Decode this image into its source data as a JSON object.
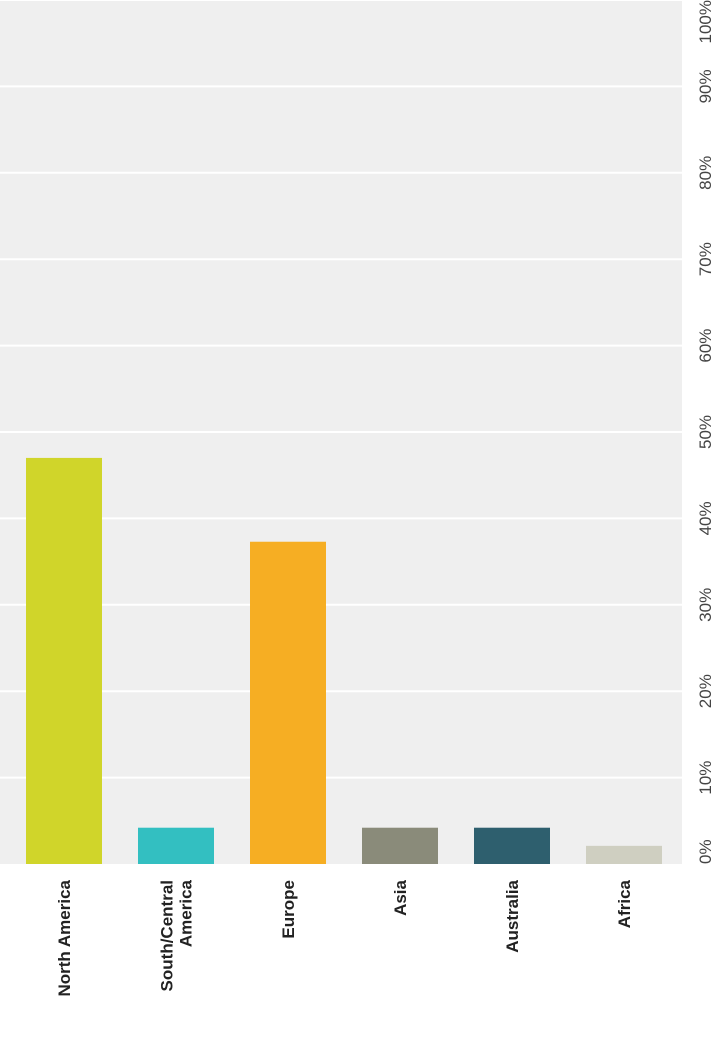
{
  "chart_data": {
    "type": "bar",
    "orientation": "vertical (page rotated 90°)",
    "categories": [
      "North America",
      "South/Central America",
      "Europe",
      "Asia",
      "Australia",
      "Africa"
    ],
    "category_label_lines": [
      [
        "North America"
      ],
      [
        "South/Central",
        "America"
      ],
      [
        "Europe"
      ],
      [
        "Asia"
      ],
      [
        "Australia"
      ],
      [
        "Africa"
      ]
    ],
    "values": [
      47.0,
      4.2,
      37.3,
      4.2,
      4.2,
      2.1
    ],
    "colors": [
      "#d0d52a",
      "#33bfc1",
      "#f6ae23",
      "#8a8b7a",
      "#2e5f6e",
      "#cfcfc1"
    ],
    "yticks": [
      "0%",
      "10%",
      "20%",
      "30%",
      "40%",
      "50%",
      "60%",
      "70%",
      "80%",
      "90%",
      "100%"
    ],
    "ylim": [
      0,
      100
    ],
    "grid": true,
    "plot_background": "#efefef",
    "title": "",
    "xlabel": "",
    "ylabel": ""
  }
}
